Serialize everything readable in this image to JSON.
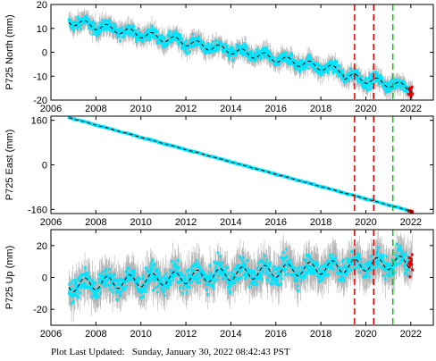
{
  "footer": "Plot Last Updated:   Sunday, January 30, 2022 08:42:43 PST",
  "colors": {
    "data": "#00e5ff",
    "errorbars": "#b4b4b4",
    "model": "#000000",
    "recent": "#e00000",
    "event_red": "#dd0000",
    "event_green": "#00cc00"
  },
  "chart_data": [
    {
      "type": "scatter",
      "ylabel": "P725 North (mm)",
      "xlim": [
        2006,
        2023
      ],
      "ylim": [
        -20,
        20
      ],
      "xticks": [
        2006,
        2008,
        2010,
        2012,
        2014,
        2016,
        2018,
        2020,
        2022
      ],
      "yticks": [
        -20,
        -10,
        0,
        10,
        20
      ],
      "data_range": [
        2006.8,
        2022.08
      ],
      "trend": {
        "start": 13,
        "end": -13
      },
      "seasonal_amplitude": 1.5,
      "noise": 1.8,
      "error": 3,
      "offsets": [
        {
          "x": 2019.0,
          "dy": -2
        }
      ],
      "vlines": [
        {
          "x": 2019.5,
          "color": "red"
        },
        {
          "x": 2020.35,
          "color": "red"
        },
        {
          "x": 2021.2,
          "color": "green"
        }
      ]
    },
    {
      "type": "scatter",
      "ylabel": "P725 East (mm)",
      "xlim": [
        2006,
        2023
      ],
      "ylim": [
        -175,
        175
      ],
      "xticks": [
        2006,
        2008,
        2010,
        2012,
        2014,
        2016,
        2018,
        2020,
        2022
      ],
      "yticks": [
        -160,
        0,
        160
      ],
      "data_range": [
        2006.8,
        2022.08
      ],
      "trend": {
        "start": 170,
        "end": -168
      },
      "seasonal_amplitude": 0.5,
      "noise": 1.5,
      "error": 3,
      "offsets": [],
      "vlines": [
        {
          "x": 2019.5,
          "color": "red"
        },
        {
          "x": 2020.35,
          "color": "red"
        },
        {
          "x": 2021.2,
          "color": "green"
        }
      ]
    },
    {
      "type": "scatter",
      "ylabel": "P725 Up (mm)",
      "xlim": [
        2006,
        2023
      ],
      "ylim": [
        -30,
        30
      ],
      "xticks": [
        2006,
        2008,
        2010,
        2012,
        2014,
        2016,
        2018,
        2020,
        2022
      ],
      "yticks": [
        -20,
        0,
        20
      ],
      "data_range": [
        2006.8,
        2022.08
      ],
      "trend": {
        "start": -5,
        "end": 10
      },
      "seasonal_amplitude": 4,
      "noise": 5,
      "error": 9,
      "offsets": [],
      "vlines": [
        {
          "x": 2019.5,
          "color": "red"
        },
        {
          "x": 2020.35,
          "color": "red"
        },
        {
          "x": 2021.2,
          "color": "green"
        }
      ]
    }
  ]
}
